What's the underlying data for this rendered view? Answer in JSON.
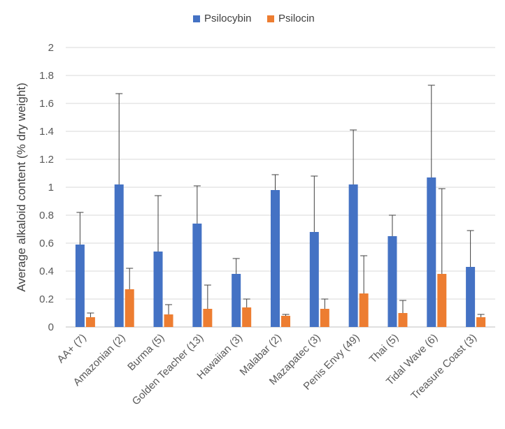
{
  "chart_data": {
    "type": "bar",
    "categories": [
      "AA+ (7)",
      "Amazonian (2)",
      "Burma (5)",
      "Golden Teacher (13)",
      "Hawaiian (3)",
      "Malabar (2)",
      "Mazapatec (3)",
      "Penis Envy (49)",
      "Thai (5)",
      "Tidal Wave (6)",
      "Treasure Coast (3)"
    ],
    "series": [
      {
        "name": "Psilocybin",
        "color": "#4472C4",
        "values": [
          0.59,
          1.02,
          0.54,
          0.74,
          0.38,
          0.98,
          0.68,
          1.02,
          0.65,
          1.07,
          0.43
        ],
        "error_upper": [
          0.82,
          1.67,
          0.94,
          1.01,
          0.49,
          1.09,
          1.08,
          1.41,
          0.8,
          1.73,
          0.69
        ]
      },
      {
        "name": "Psilocin",
        "color": "#ED7D31",
        "values": [
          0.07,
          0.27,
          0.09,
          0.13,
          0.14,
          0.08,
          0.13,
          0.24,
          0.1,
          0.38,
          0.07
        ],
        "error_upper": [
          0.1,
          0.42,
          0.16,
          0.3,
          0.2,
          0.09,
          0.2,
          0.51,
          0.19,
          0.99,
          0.09
        ]
      }
    ],
    "ylabel": "Average alkaloid content (% dry weight)",
    "xlabel": "",
    "ylim": [
      0,
      2
    ],
    "yticks": [
      "0",
      "0.2",
      "0.4",
      "0.6",
      "0.8",
      "1",
      "1.2",
      "1.4",
      "1.6",
      "1.8",
      "2"
    ],
    "grid": true,
    "legend": "top-center"
  }
}
